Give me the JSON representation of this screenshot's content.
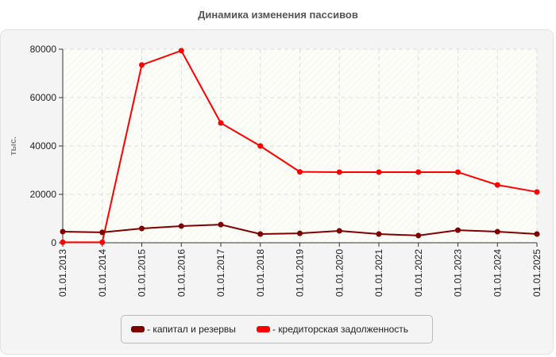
{
  "title": "Динамика изменения пассивов",
  "ylabel": "тыс.",
  "legend": [
    {
      "label": "- капитал и резервы",
      "color": "#7f0000"
    },
    {
      "label": "- кредиторская задолженность",
      "color": "#ff0000"
    }
  ],
  "chart_data": {
    "type": "line",
    "title": "Динамика изменения пассивов",
    "xlabel": "",
    "ylabel": "тыс.",
    "ylim": [
      0,
      80000
    ],
    "yticks": [
      0,
      20000,
      40000,
      60000,
      80000
    ],
    "grid": true,
    "legend_position": "bottom",
    "categories": [
      "01.01.2013",
      "01.01.2014",
      "01.01.2015",
      "01.01.2016",
      "01.01.2017",
      "01.01.2018",
      "01.01.2019",
      "01.01.2020",
      "01.01.2021",
      "01.01.2022",
      "01.01.2023",
      "01.01.2024",
      "01.01.2025"
    ],
    "series": [
      {
        "name": "капитал и резервы",
        "color": "#7f0000",
        "values": [
          4600,
          4300,
          5900,
          6900,
          7500,
          3600,
          3900,
          4900,
          3600,
          3000,
          5200,
          4600,
          3600
        ]
      },
      {
        "name": "кредиторская задолженность",
        "color": "#ff0000",
        "values": [
          200,
          200,
          73500,
          79400,
          49500,
          40000,
          29300,
          29200,
          29200,
          29200,
          29200,
          23900,
          21000
        ]
      }
    ]
  }
}
